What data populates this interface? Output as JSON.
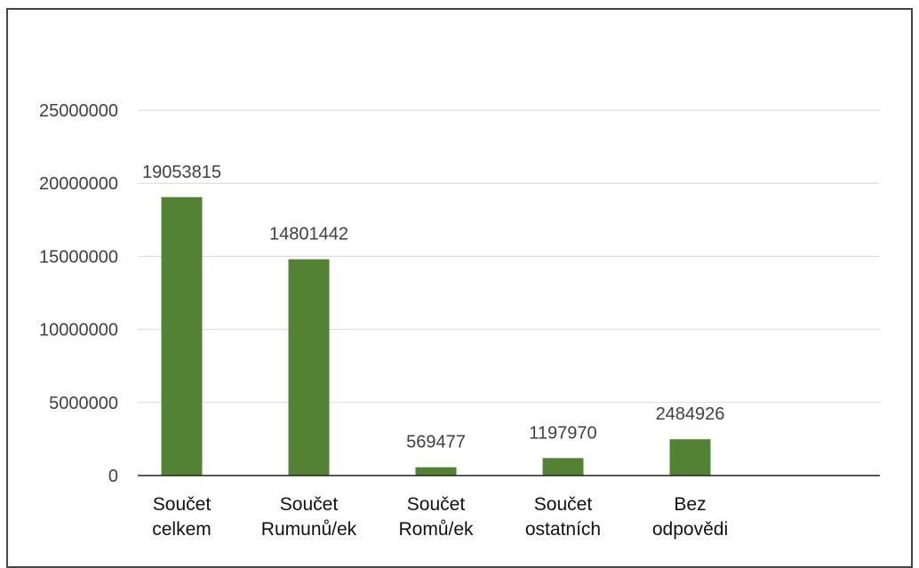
{
  "chart_data": {
    "type": "bar",
    "categories": [
      [
        "Součet",
        "celkem"
      ],
      [
        "Součet",
        "Rumunů/ek"
      ],
      [
        "Součet",
        "Romů/ek"
      ],
      [
        "Součet",
        "ostatních"
      ],
      [
        "Bez",
        "odpovědi"
      ]
    ],
    "values": [
      19053815,
      14801442,
      569477,
      1197970,
      2484926
    ],
    "data_labels": [
      "19053815",
      "14801442",
      "569477",
      "1197970",
      "2484926"
    ],
    "yticks": [
      0,
      5000000,
      10000000,
      15000000,
      20000000,
      25000000
    ],
    "ytick_labels": [
      "0",
      "5000000",
      "10000000",
      "15000000",
      "20000000",
      "25000000"
    ],
    "ylim": [
      0,
      25000000
    ],
    "grid": true,
    "bar_color": "#548235",
    "title": "",
    "xlabel": "",
    "ylabel": ""
  }
}
